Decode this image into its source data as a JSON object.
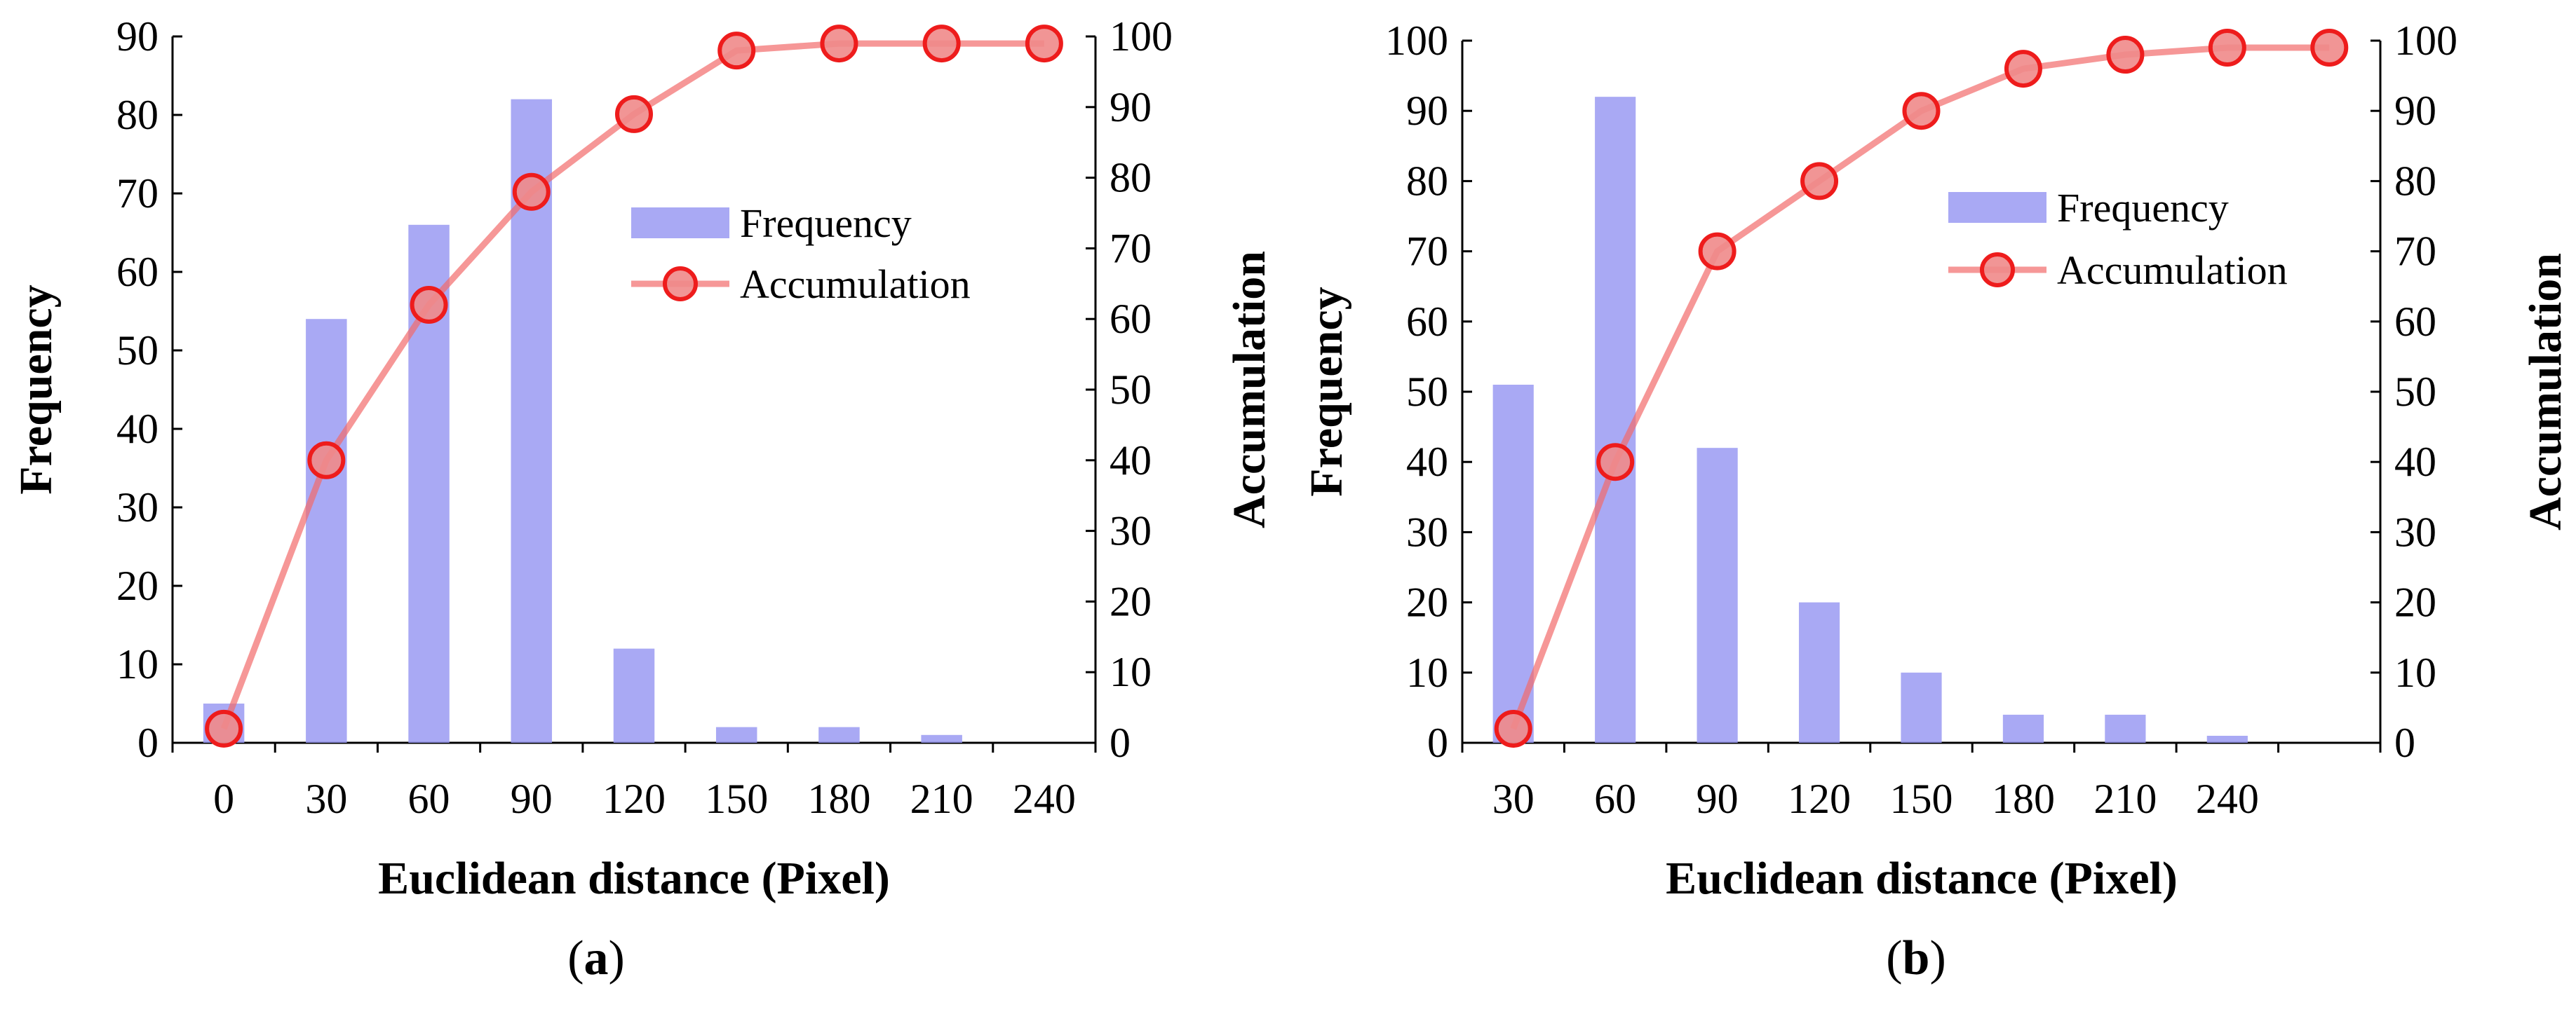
{
  "chart_data": [
    {
      "type": "bar",
      "panel_label": "a",
      "caption_open": "(",
      "caption_close": ")",
      "categories": [
        "0",
        "30",
        "60",
        "90",
        "120",
        "150",
        "180",
        "210",
        "240"
      ],
      "series": [
        {
          "name": "Frequency",
          "type": "bar",
          "axis": "left",
          "values": [
            5,
            54,
            66,
            82,
            12,
            2,
            2,
            1,
            0
          ]
        },
        {
          "name": "Accumulation",
          "type": "line",
          "axis": "right",
          "values": [
            2,
            40,
            62,
            78,
            89,
            98,
            99,
            99,
            99
          ]
        }
      ],
      "xlabel": "Euclidean distance (Pixel)",
      "ylabel": "Frequency",
      "y2label": "Accumulation",
      "ylim": [
        0,
        90
      ],
      "y2lim": [
        0,
        100
      ],
      "yticks": [
        0,
        10,
        20,
        30,
        40,
        50,
        60,
        70,
        80,
        90
      ],
      "y2ticks": [
        0,
        10,
        20,
        30,
        40,
        50,
        60,
        70,
        80,
        90,
        100
      ],
      "legend": {
        "location": "center-right",
        "entries": [
          "Frequency",
          "Accumulation"
        ]
      },
      "grid": false
    },
    {
      "type": "bar",
      "panel_label": "b",
      "caption_open": "(",
      "caption_close": ")",
      "categories": [
        "30",
        "60",
        "90",
        "120",
        "150",
        "180",
        "210",
        "240",
        ""
      ],
      "series": [
        {
          "name": "Frequency",
          "type": "bar",
          "axis": "left",
          "values": [
            51,
            92,
            42,
            20,
            10,
            4,
            4,
            1,
            0
          ]
        },
        {
          "name": "Accumulation",
          "type": "line",
          "axis": "right",
          "values": [
            2,
            40,
            70,
            80,
            90,
            96,
            98,
            99,
            99
          ]
        }
      ],
      "xlabel": "Euclidean distance (Pixel)",
      "ylabel": "Frequency",
      "y2label": "Accumulation",
      "ylim": [
        0,
        100
      ],
      "y2lim": [
        0,
        100
      ],
      "yticks": [
        0,
        10,
        20,
        30,
        40,
        50,
        60,
        70,
        80,
        90,
        100
      ],
      "y2ticks": [
        0,
        10,
        20,
        30,
        40,
        50,
        60,
        70,
        80,
        90,
        100
      ],
      "legend": {
        "location": "center-right",
        "entries": [
          "Frequency",
          "Accumulation"
        ]
      },
      "grid": false
    }
  ]
}
